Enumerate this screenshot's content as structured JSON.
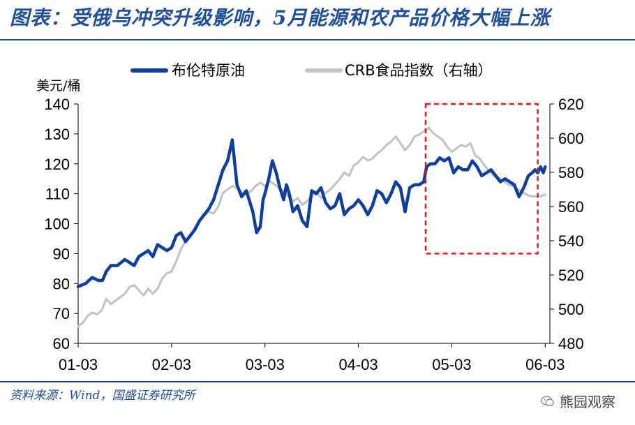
{
  "title": "图表：受俄乌冲突升级影响，5月能源和农产品价格大幅上涨",
  "source": "资料来源：Wind，国盛证券研究所",
  "watermark": "熊园观察",
  "colors": {
    "brent": "#0f3f9c",
    "crb": "#c4c4c4",
    "highlight": "#e31a1c",
    "brand": "#1f4e9c"
  },
  "chart_data": {
    "type": "line",
    "ylabel_left": "美元/桶",
    "y_left_lim": [
      60,
      140
    ],
    "y_left_ticks": [
      60,
      70,
      80,
      90,
      100,
      110,
      120,
      130,
      140
    ],
    "y_right_lim": [
      480,
      620
    ],
    "y_right_ticks": [
      480,
      500,
      520,
      540,
      560,
      580,
      600,
      620
    ],
    "x_ticks": [
      "01-03",
      "02-03",
      "03-03",
      "04-03",
      "05-03",
      "06-03"
    ],
    "x_tick_positions": [
      0,
      1,
      2,
      3,
      4,
      5
    ],
    "legend": [
      "布伦特原油",
      "CRB食品指数（右轴）"
    ],
    "highlight_box": {
      "x_range": [
        3.72,
        4.92
      ],
      "y_left_range": [
        90,
        140
      ]
    },
    "series": [
      {
        "name": "布伦特原油",
        "axis": "left",
        "x": [
          0.0,
          0.08,
          0.15,
          0.22,
          0.26,
          0.3,
          0.35,
          0.42,
          0.5,
          0.55,
          0.6,
          0.65,
          0.7,
          0.75,
          0.8,
          0.85,
          0.9,
          0.95,
          1.0,
          1.05,
          1.1,
          1.15,
          1.2,
          1.25,
          1.3,
          1.35,
          1.4,
          1.45,
          1.5,
          1.55,
          1.6,
          1.65,
          1.7,
          1.75,
          1.8,
          1.83,
          1.87,
          1.91,
          1.95,
          1.98,
          2.0,
          2.04,
          2.08,
          2.12,
          2.16,
          2.2,
          2.23,
          2.26,
          2.3,
          2.35,
          2.4,
          2.45,
          2.5,
          2.55,
          2.6,
          2.65,
          2.7,
          2.75,
          2.8,
          2.85,
          2.9,
          2.95,
          3.0,
          3.05,
          3.1,
          3.15,
          3.2,
          3.25,
          3.3,
          3.35,
          3.4,
          3.45,
          3.5,
          3.55,
          3.6,
          3.65,
          3.7,
          3.73,
          3.77,
          3.82,
          3.87,
          3.92,
          3.97,
          4.02,
          4.07,
          4.12,
          4.17,
          4.22,
          4.27,
          4.32,
          4.37,
          4.42,
          4.47,
          4.52,
          4.57,
          4.62,
          4.67,
          4.72,
          4.77,
          4.82,
          4.86,
          4.89,
          4.92,
          4.95,
          4.98,
          5.0
        ],
        "values": [
          79,
          80,
          82,
          81,
          81,
          84,
          86,
          86,
          88,
          87,
          86,
          89,
          90,
          91,
          89,
          93,
          92,
          91,
          92,
          96,
          97,
          94,
          96,
          98,
          101,
          103,
          105,
          108,
          113,
          118,
          121,
          128,
          113,
          109,
          111,
          108,
          104,
          97,
          99,
          108,
          110,
          115,
          121,
          117,
          112,
          108,
          113,
          110,
          104,
          106,
          101,
          99,
          111,
          110,
          112,
          107,
          105,
          106,
          110,
          103,
          105,
          106,
          108,
          106,
          103,
          106,
          111,
          110,
          107,
          110,
          114,
          112,
          104,
          112,
          113,
          113,
          114,
          119,
          120,
          120,
          122,
          121,
          122,
          117,
          119,
          118,
          118,
          121,
          119,
          116,
          117,
          118,
          116,
          114,
          115,
          114,
          113,
          109,
          112,
          116,
          117,
          118,
          117,
          119,
          117,
          119
        ]
      },
      {
        "name": "CRB食品指数（右轴）",
        "axis": "right",
        "x": [
          0.0,
          0.05,
          0.1,
          0.15,
          0.2,
          0.25,
          0.3,
          0.35,
          0.4,
          0.45,
          0.5,
          0.55,
          0.6,
          0.65,
          0.7,
          0.75,
          0.8,
          0.85,
          0.9,
          0.95,
          1.0,
          1.05,
          1.1,
          1.15,
          1.2,
          1.25,
          1.3,
          1.35,
          1.4,
          1.45,
          1.5,
          1.55,
          1.6,
          1.65,
          1.7,
          1.75,
          1.8,
          1.85,
          1.9,
          1.95,
          2.0,
          2.05,
          2.1,
          2.15,
          2.2,
          2.25,
          2.3,
          2.35,
          2.4,
          2.45,
          2.5,
          2.55,
          2.6,
          2.65,
          2.7,
          2.75,
          2.8,
          2.85,
          2.9,
          2.95,
          3.0,
          3.05,
          3.1,
          3.15,
          3.2,
          3.25,
          3.3,
          3.35,
          3.4,
          3.45,
          3.5,
          3.55,
          3.6,
          3.65,
          3.7,
          3.75,
          3.8,
          3.85,
          3.9,
          3.95,
          4.0,
          4.05,
          4.1,
          4.15,
          4.2,
          4.25,
          4.3,
          4.35,
          4.4,
          4.45,
          4.5,
          4.55,
          4.6,
          4.65,
          4.7,
          4.75,
          4.8,
          4.85,
          4.9,
          4.95,
          5.0
        ],
        "values": [
          490,
          492,
          496,
          498,
          497,
          499,
          506,
          503,
          505,
          507,
          509,
          513,
          514,
          511,
          508,
          512,
          509,
          512,
          518,
          521,
          522,
          528,
          535,
          540,
          542,
          548,
          552,
          555,
          557,
          556,
          560,
          568,
          570,
          572,
          571,
          568,
          567,
          569,
          572,
          574,
          572,
          575,
          573,
          571,
          569,
          566,
          563,
          565,
          561,
          563,
          566,
          569,
          565,
          568,
          570,
          573,
          576,
          580,
          578,
          584,
          586,
          589,
          587,
          588,
          591,
          593,
          596,
          598,
          601,
          597,
          593,
          596,
          601,
          602,
          604,
          606,
          603,
          601,
          599,
          595,
          592,
          594,
          596,
          595,
          597,
          590,
          588,
          584,
          581,
          578,
          577,
          575,
          573,
          572,
          570,
          569,
          567,
          566,
          566,
          566,
          567
        ]
      }
    ]
  }
}
